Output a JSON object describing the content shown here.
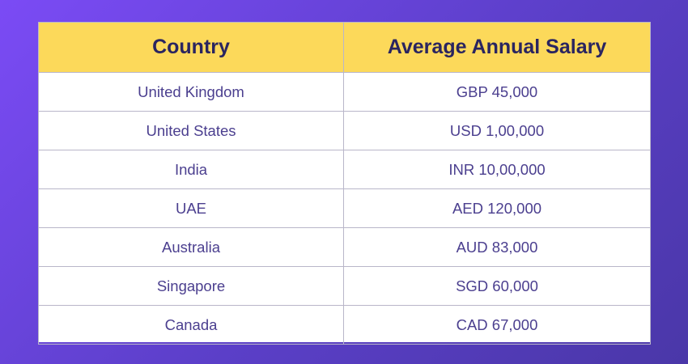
{
  "table": {
    "headers": [
      "Country",
      "Average Annual Salary"
    ],
    "rows": [
      [
        "United Kingdom",
        "GBP 45,000"
      ],
      [
        "United States",
        "USD 1,00,000"
      ],
      [
        "India",
        "INR 10,00,000"
      ],
      [
        "UAE",
        "AED 120,000"
      ],
      [
        "Australia",
        "AUD 83,000"
      ],
      [
        "Singapore",
        "SGD 60,000"
      ],
      [
        "Canada",
        "CAD 67,000"
      ]
    ]
  },
  "colors": {
    "background_start": "#7b4bf5",
    "background_end": "#4a37a8",
    "header_fill": "#fcd95a",
    "header_text": "#2a2560",
    "cell_text": "#4b3f8f"
  }
}
